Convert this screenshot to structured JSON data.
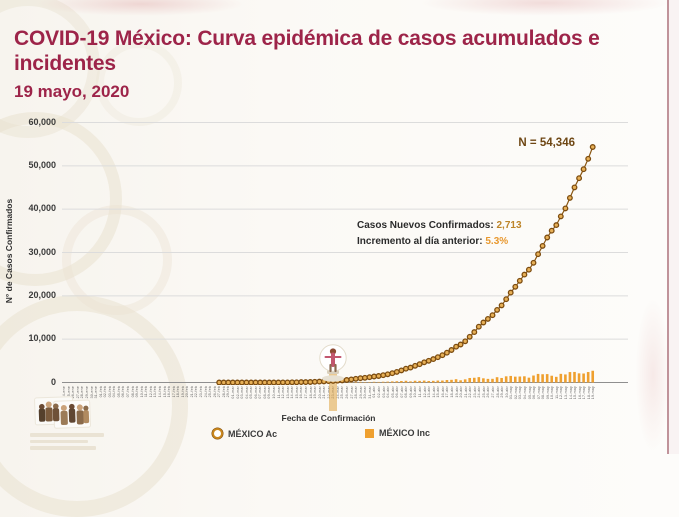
{
  "slide": {
    "title": "COVID-19 México: Curva epidémica de casos acumulados e incidentes",
    "date": "19 mayo, 2020"
  },
  "chart": {
    "y_axis_title": "N° de Casos Confirmados",
    "x_axis_title": "Fecha de Confirmación",
    "y_ticks": [
      "60,000",
      "50,000",
      "40,000",
      "30,000",
      "20,000",
      "10,000",
      "0"
    ],
    "highlight_date": "23-mar",
    "annotations": {
      "total_label": "N = 54,346",
      "new_cases_label": "Casos Nuevos Confirmados:",
      "new_cases_value": "2,713",
      "increment_label": "Incremento al día anterior:",
      "increment_value": "5.3%"
    },
    "legend": [
      {
        "label": "MÉXICO Ac",
        "marker": "donut-marker"
      },
      {
        "label": "MÉXICO Inc",
        "marker": "square-marker"
      }
    ],
    "colors": {
      "title_maroon": "#9d2449",
      "curve_brown": "#8a5713",
      "dot_fill": "#e7b057",
      "bar_orange": "#efa02f",
      "annotation_total": "#6e4714",
      "annotation_new_value": "#bd8428",
      "annotation_increment_value": "#e8982f",
      "gridline": "#dcdcdc",
      "slide_edge_pink": "#c0939a"
    }
  },
  "chart_data": {
    "type": "combo",
    "title": "COVID-19 México: Curva epidémica de casos acumulados e incidentes",
    "xlabel": "Fecha de Confirmación",
    "ylabel": "N° de Casos Confirmados",
    "ylim": [
      0,
      60000
    ],
    "y_tick_values": [
      0,
      10000,
      20000,
      30000,
      40000,
      50000,
      60000
    ],
    "grid": true,
    "legend_position": "bottom",
    "total_on_last_date": 54346,
    "new_cases_last_date": 2713,
    "increment_vs_previous_day_pct": 5.3,
    "x_lead_dates": [
      "24-ene",
      "25-ene",
      "26-ene",
      "27-ene",
      "28-ene",
      "29-ene",
      "30-ene",
      "31-ene",
      "01-feb",
      "02-feb",
      "03-feb",
      "04-feb",
      "05-feb",
      "06-feb",
      "07-feb",
      "08-feb",
      "09-feb",
      "10-feb",
      "11-feb",
      "12-feb",
      "13-feb",
      "14-feb",
      "15-feb",
      "16-feb",
      "17-feb",
      "18-feb",
      "19-feb",
      "20-feb",
      "21-feb",
      "22-feb",
      "23-feb",
      "24-feb",
      "25-feb",
      "26-feb"
    ],
    "x": [
      "27-feb",
      "28-feb",
      "29-feb",
      "01-mar",
      "02-mar",
      "03-mar",
      "04-mar",
      "05-mar",
      "06-mar",
      "07-mar",
      "08-mar",
      "09-mar",
      "10-mar",
      "11-mar",
      "12-mar",
      "13-mar",
      "14-mar",
      "15-mar",
      "16-mar",
      "17-mar",
      "18-mar",
      "19-mar",
      "20-mar",
      "21-mar",
      "22-mar",
      "23-mar",
      "24-mar",
      "25-mar",
      "26-mar",
      "27-mar",
      "28-mar",
      "29-mar",
      "30-mar",
      "31-mar",
      "01-abr",
      "02-abr",
      "03-abr",
      "04-abr",
      "05-abr",
      "06-abr",
      "07-abr",
      "08-abr",
      "09-abr",
      "10-abr",
      "11-abr",
      "12-abr",
      "13-abr",
      "14-abr",
      "15-abr",
      "16-abr",
      "17-abr",
      "18-abr",
      "19-abr",
      "20-abr",
      "21-abr",
      "22-abr",
      "23-abr",
      "24-abr",
      "25-abr",
      "26-abr",
      "27-abr",
      "28-abr",
      "29-abr",
      "30-abr",
      "01-may",
      "02-may",
      "03-may",
      "04-may",
      "05-may",
      "06-may",
      "07-may",
      "08-may",
      "09-may",
      "10-may",
      "11-may",
      "12-may",
      "13-may",
      "14-may",
      "15-may",
      "16-may",
      "17-may",
      "18-may",
      "19-may"
    ],
    "series": [
      {
        "name": "MÉXICO Ac",
        "type": "scatter-line",
        "color": "#8a5713",
        "values": [
          2,
          3,
          4,
          5,
          5,
          5,
          5,
          5,
          6,
          6,
          7,
          7,
          7,
          11,
          15,
          26,
          41,
          53,
          82,
          93,
          118,
          164,
          203,
          251,
          316,
          367,
          405,
          475,
          585,
          717,
          848,
          993,
          1094,
          1215,
          1378,
          1510,
          1688,
          1890,
          2143,
          2439,
          2785,
          3181,
          3441,
          3844,
          4219,
          4661,
          5014,
          5399,
          5847,
          6297,
          6875,
          7497,
          8261,
          8772,
          9501,
          10544,
          11633,
          12872,
          13842,
          14677,
          15529,
          16752,
          17799,
          19224,
          20739,
          22088,
          23471,
          24905,
          26025,
          27634,
          29616,
          31522,
          33460,
          35022,
          36327,
          38324,
          40186,
          42595,
          45032,
          47144,
          49219,
          51633,
          54346
        ]
      },
      {
        "name": "MÉXICO Inc",
        "type": "bar",
        "color": "#efa02f",
        "values": [
          2,
          1,
          1,
          1,
          0,
          0,
          0,
          0,
          1,
          0,
          1,
          0,
          0,
          4,
          4,
          11,
          15,
          12,
          29,
          11,
          25,
          46,
          39,
          48,
          65,
          51,
          38,
          70,
          110,
          132,
          131,
          145,
          101,
          121,
          163,
          132,
          178,
          202,
          253,
          296,
          346,
          396,
          260,
          403,
          375,
          442,
          353,
          385,
          448,
          450,
          578,
          622,
          764,
          511,
          729,
          1043,
          1089,
          1239,
          970,
          835,
          852,
          1223,
          1047,
          1425,
          1515,
          1349,
          1383,
          1434,
          1120,
          1609,
          1982,
          1906,
          1938,
          1562,
          1305,
          1997,
          1862,
          2409,
          2437,
          2112,
          2075,
          2414,
          2713
        ]
      }
    ]
  }
}
